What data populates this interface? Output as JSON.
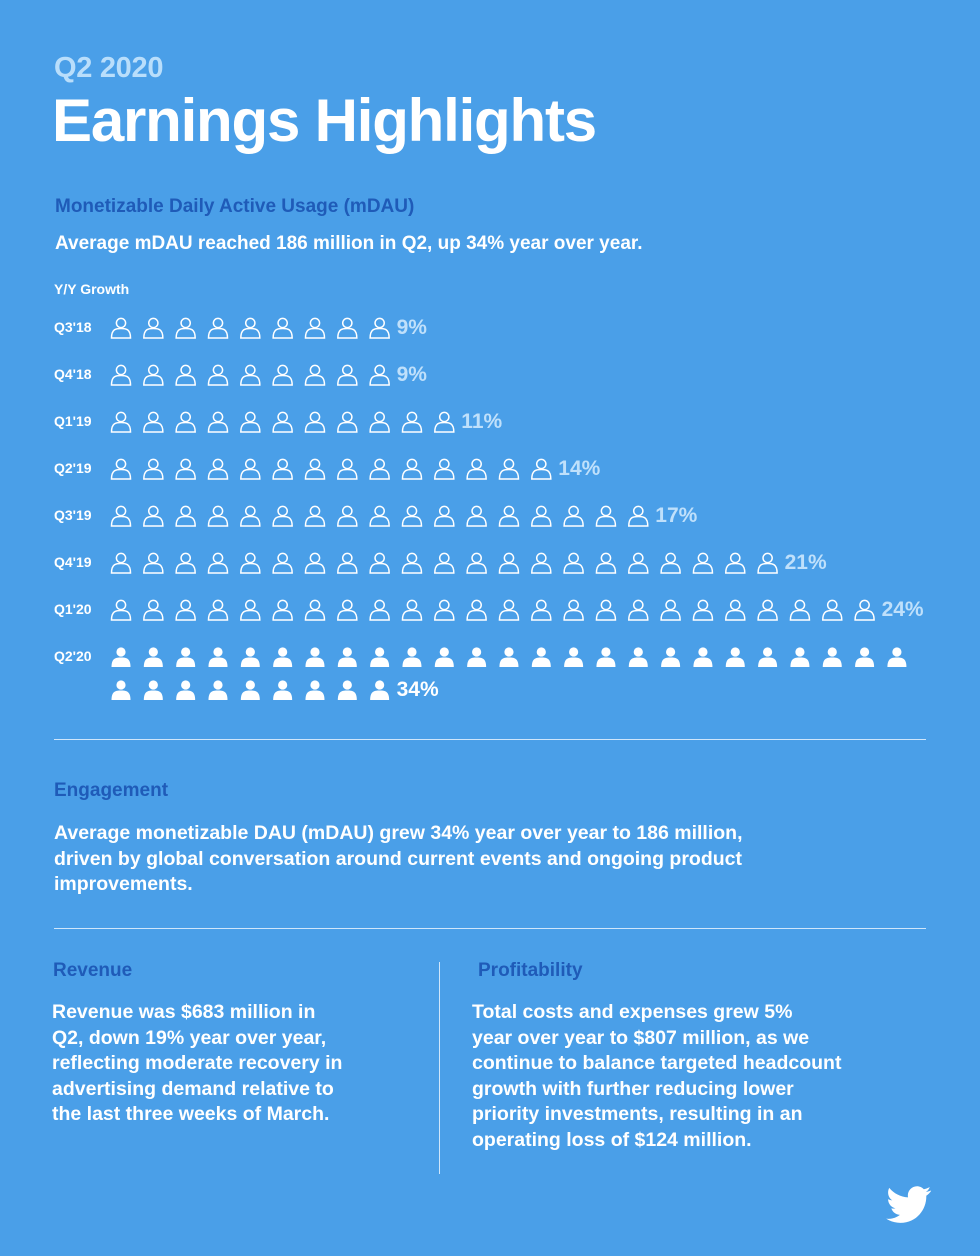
{
  "header": {
    "kicker": "Q2 2020",
    "title": "Earnings Highlights"
  },
  "mdau": {
    "heading": "Monetizable Daily Active Usage (mDAU)",
    "summary": "Average mDAU reached 186 million in Q2, up 34% year over year.",
    "axis_label": "Y/Y Growth"
  },
  "chart_data": {
    "type": "bar",
    "title": "Monetizable Daily Active Usage (mDAU)",
    "ylabel": "Y/Y Growth",
    "xlabel": "",
    "unit": "%",
    "orientation": "horizontal",
    "categories": [
      "Q3'18",
      "Q4'18",
      "Q1'19",
      "Q2'19",
      "Q3'19",
      "Q4'19",
      "Q1'20",
      "Q2'20"
    ],
    "values": [
      9,
      9,
      11,
      14,
      17,
      21,
      24,
      34
    ],
    "labels": [
      "9%",
      "9%",
      "11%",
      "14%",
      "17%",
      "21%",
      "24%",
      "34%"
    ],
    "highlight": "Q2'20",
    "colors": {
      "icon_outline": "#ffffff",
      "icon_filled": "#ffffff",
      "label": "#bfe0fb",
      "label_highlight": "#ffffff"
    }
  },
  "engagement": {
    "heading": "Engagement",
    "lines": [
      "Average monetizable DAU (mDAU) grew 34% year over year to 186 million,",
      "driven by global conversation around current events and ongoing product",
      "improvements."
    ]
  },
  "revenue": {
    "heading": "Revenue",
    "lines": [
      "Revenue was $683 million in",
      "Q2, down 19% year over year,",
      "reflecting moderate recovery in",
      "advertising demand relative to",
      "the last three weeks of March."
    ]
  },
  "profitability": {
    "heading": "Profitability",
    "lines": [
      "Total costs and expenses grew 5%",
      "year over year to $807 million, as we",
      "continue to balance targeted headcount",
      "growth with further reducing lower",
      "priority investments, resulting in an",
      "operating loss of $124 million."
    ]
  },
  "brand": {
    "icon": "twitter-bird-icon",
    "background": "#4a9fe8",
    "accent": "#1f5bb8"
  }
}
